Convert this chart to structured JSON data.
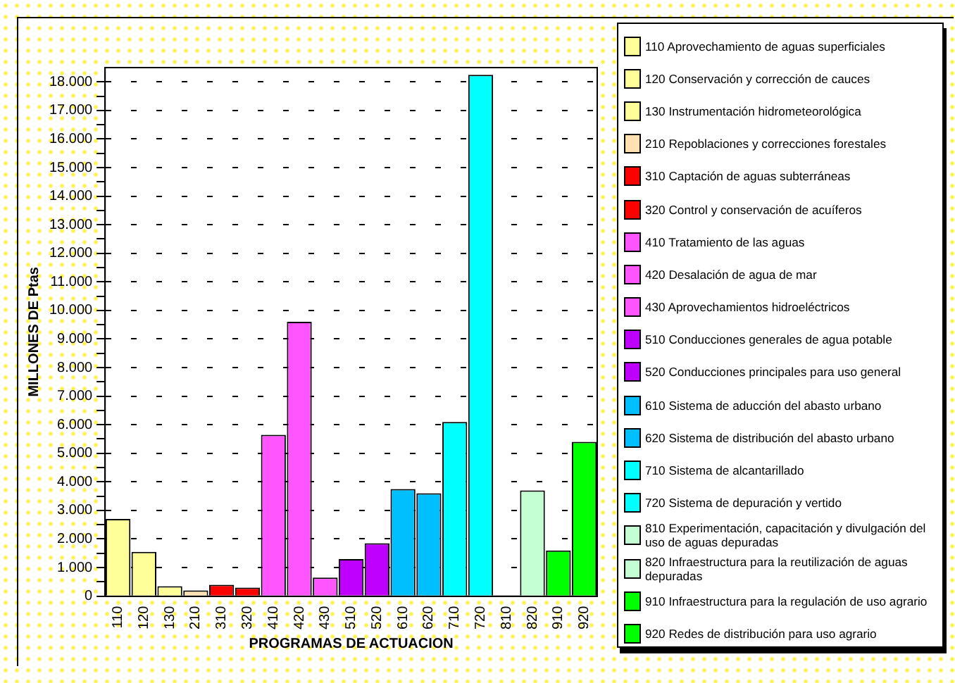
{
  "chart_data": {
    "type": "bar",
    "xlabel": "PROGRAMAS DE ACTUACION",
    "ylabel": "MILLONES DE Ptas",
    "categories": [
      "110",
      "120",
      "130",
      "210",
      "310",
      "320",
      "410",
      "420",
      "430",
      "510",
      "520",
      "610",
      "620",
      "710",
      "720",
      "810",
      "820",
      "910",
      "920"
    ],
    "series": [
      {
        "name": "110 Aprovechamiento de aguas superficiales",
        "color": "#ffff99",
        "values": [
          2700,
          null,
          null,
          null,
          null,
          null,
          null,
          null,
          null,
          null,
          null,
          null,
          null,
          null,
          null,
          null,
          null,
          null,
          null
        ]
      },
      {
        "name": "120 Conservación y corrección de cauces",
        "color": "#ffff99",
        "values": [
          null,
          1550,
          null,
          null,
          null,
          null,
          null,
          null,
          null,
          null,
          null,
          null,
          null,
          null,
          null,
          null,
          null,
          null,
          null
        ]
      },
      {
        "name": "130 Instrumentación hidrometeorológica",
        "color": "#ffff99",
        "values": [
          null,
          null,
          350,
          null,
          null,
          null,
          null,
          null,
          null,
          null,
          null,
          null,
          null,
          null,
          null,
          null,
          null,
          null,
          null
        ]
      },
      {
        "name": "210 Repoblaciones y correcciones forestales",
        "color": "#ffe0b0",
        "values": [
          null,
          null,
          null,
          200,
          null,
          null,
          null,
          null,
          null,
          null,
          null,
          null,
          null,
          null,
          null,
          null,
          null,
          null,
          null
        ]
      },
      {
        "name": "310 Captación de aguas subterráneas",
        "color": "#ff0000",
        "values": [
          null,
          null,
          null,
          null,
          400,
          null,
          null,
          null,
          null,
          null,
          null,
          null,
          null,
          null,
          null,
          null,
          null,
          null,
          null
        ]
      },
      {
        "name": "320 Control y conservación de acuíferos",
        "color": "#ff0000",
        "values": [
          null,
          null,
          null,
          null,
          null,
          300,
          null,
          null,
          null,
          null,
          null,
          null,
          null,
          null,
          null,
          null,
          null,
          null,
          null
        ]
      },
      {
        "name": "410 Tratamiento de las aguas",
        "color": "#ff55ff",
        "values": [
          null,
          null,
          null,
          null,
          null,
          null,
          5650,
          null,
          null,
          null,
          null,
          null,
          null,
          null,
          null,
          null,
          null,
          null,
          null
        ]
      },
      {
        "name": "420 Desalación de agua de mar",
        "color": "#ff55ff",
        "values": [
          null,
          null,
          null,
          null,
          null,
          null,
          null,
          9600,
          null,
          null,
          null,
          null,
          null,
          null,
          null,
          null,
          null,
          null,
          null
        ]
      },
      {
        "name": "430 Aprovechamientos hidroeléctricos",
        "color": "#ff55ff",
        "values": [
          null,
          null,
          null,
          null,
          null,
          null,
          null,
          null,
          650,
          null,
          null,
          null,
          null,
          null,
          null,
          null,
          null,
          null,
          null
        ]
      },
      {
        "name": "510 Conducciones generales de agua potable",
        "color": "#c000ff",
        "values": [
          null,
          null,
          null,
          null,
          null,
          null,
          null,
          null,
          null,
          1300,
          null,
          null,
          null,
          null,
          null,
          null,
          null,
          null,
          null
        ]
      },
      {
        "name": "520 Conducciones principales para uso general",
        "color": "#c000ff",
        "values": [
          null,
          null,
          null,
          null,
          null,
          null,
          null,
          null,
          null,
          null,
          1850,
          null,
          null,
          null,
          null,
          null,
          null,
          null,
          null
        ]
      },
      {
        "name": "610 Sistema de aducción del abasto urbano",
        "color": "#00bfff",
        "values": [
          null,
          null,
          null,
          null,
          null,
          null,
          null,
          null,
          null,
          null,
          null,
          3750,
          null,
          null,
          null,
          null,
          null,
          null,
          null
        ]
      },
      {
        "name": "620 Sistema de distribución del abasto urbano",
        "color": "#00bfff",
        "values": [
          null,
          null,
          null,
          null,
          null,
          null,
          null,
          null,
          null,
          null,
          null,
          null,
          3600,
          null,
          null,
          null,
          null,
          null,
          null
        ]
      },
      {
        "name": "710 Sistema de alcantarillado",
        "color": "#00ffff",
        "values": [
          null,
          null,
          null,
          null,
          null,
          null,
          null,
          null,
          null,
          null,
          null,
          null,
          null,
          6100,
          null,
          null,
          null,
          null,
          null
        ]
      },
      {
        "name": "720 Sistema de depuración y vertido",
        "color": "#00ffff",
        "values": [
          null,
          null,
          null,
          null,
          null,
          null,
          null,
          null,
          null,
          null,
          null,
          null,
          null,
          null,
          18250,
          null,
          null,
          null,
          null
        ]
      },
      {
        "name": "810 Experimentación, capacitación y divulgación del uso de aguas depuradas",
        "color": "#c4ffd4",
        "values": [
          null,
          null,
          null,
          null,
          null,
          null,
          null,
          null,
          null,
          null,
          null,
          null,
          null,
          null,
          null,
          0,
          null,
          null,
          null
        ]
      },
      {
        "name": "820 Infraestructura para la reutilización de aguas depuradas",
        "color": "#c4ffd4",
        "values": [
          null,
          null,
          null,
          null,
          null,
          null,
          null,
          null,
          null,
          null,
          null,
          null,
          null,
          null,
          null,
          null,
          3700,
          null,
          null
        ]
      },
      {
        "name": "910 Infraestructura para la regulación de uso agrario",
        "color": "#00ff00",
        "values": [
          null,
          null,
          null,
          null,
          null,
          null,
          null,
          null,
          null,
          null,
          null,
          null,
          null,
          null,
          null,
          null,
          null,
          1600,
          null
        ]
      },
      {
        "name": "920 Redes de distribución para uso agrario",
        "color": "#00ff00",
        "values": [
          null,
          null,
          null,
          null,
          null,
          null,
          null,
          null,
          null,
          null,
          null,
          null,
          null,
          null,
          null,
          null,
          null,
          null,
          5400
        ]
      }
    ],
    "ylim": [
      0,
      18500
    ],
    "yticks": [
      {
        "value": 0,
        "label": "0"
      },
      {
        "value": 500,
        "label": null
      },
      {
        "value": 1000,
        "label": "1.000"
      },
      {
        "value": 1500,
        "label": null
      },
      {
        "value": 2000,
        "label": "2.000"
      },
      {
        "value": 2500,
        "label": null
      },
      {
        "value": 3000,
        "label": "3.000"
      },
      {
        "value": 3500,
        "label": null
      },
      {
        "value": 4000,
        "label": "4.000"
      },
      {
        "value": 4500,
        "label": null
      },
      {
        "value": 5000,
        "label": "5.000"
      },
      {
        "value": 5500,
        "label": null
      },
      {
        "value": 6000,
        "label": "6.000"
      },
      {
        "value": 6500,
        "label": null
      },
      {
        "value": 7000,
        "label": "7.000"
      },
      {
        "value": 7500,
        "label": null
      },
      {
        "value": 8000,
        "label": "8.000"
      },
      {
        "value": 8500,
        "label": null
      },
      {
        "value": 9000,
        "label": "9.000"
      },
      {
        "value": 9500,
        "label": null
      },
      {
        "value": 10000,
        "label": "10.000"
      },
      {
        "value": 10500,
        "label": null
      },
      {
        "value": 11000,
        "label": "11.000"
      },
      {
        "value": 11500,
        "label": null
      },
      {
        "value": 12000,
        "label": "12.000"
      },
      {
        "value": 12500,
        "label": null
      },
      {
        "value": 13000,
        "label": "13.000"
      },
      {
        "value": 13500,
        "label": null
      },
      {
        "value": 14000,
        "label": "14.000"
      },
      {
        "value": 14500,
        "label": null
      },
      {
        "value": 15000,
        "label": "15.000"
      },
      {
        "value": 15500,
        "label": null
      },
      {
        "value": 16000,
        "label": "16.000"
      },
      {
        "value": 16500,
        "label": null
      },
      {
        "value": 17000,
        "label": "17.000"
      },
      {
        "value": 17500,
        "label": null
      },
      {
        "value": 18000,
        "label": "18.000"
      }
    ],
    "grid": "y",
    "legend": "right"
  }
}
